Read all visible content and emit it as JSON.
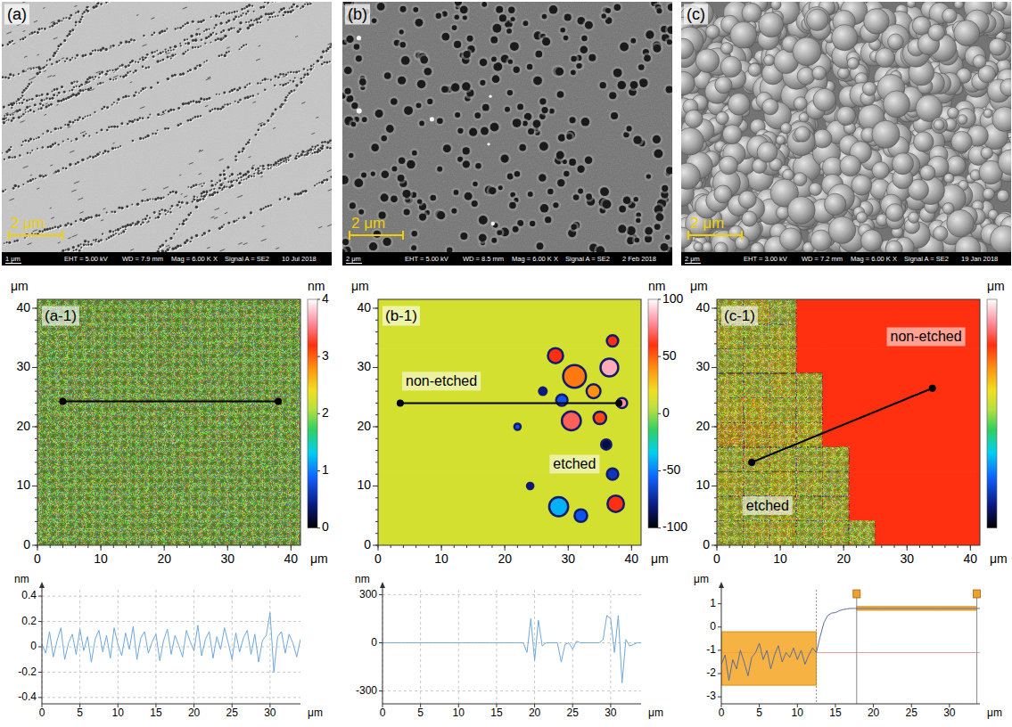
{
  "sem_images": [
    {
      "label": "(a)",
      "scale_bar": "2 μm",
      "info_bar": {
        "scale": "1 μm",
        "eht": "EHT = 5.00 kV",
        "wd": "WD = 7.9 mm",
        "mag": "Mag = 6.00 K X",
        "signal": "Signal A = SE2",
        "date": "10 Jul 2018"
      }
    },
    {
      "label": "(b)",
      "scale_bar": "2 μm",
      "info_bar": {
        "scale": "2 μm",
        "eht": "EHT = 5.00 kV",
        "wd": "WD = 8.5 mm",
        "mag": "Mag = 6.00 K X",
        "signal": "Signal A = SE2",
        "date": "2 Feb 2018"
      }
    },
    {
      "label": "(c)",
      "scale_bar": "2 μm",
      "info_bar": {
        "scale": "2 μm",
        "eht": "EHT = 3.00 kV",
        "wd": "WD = 7.2 mm",
        "mag": "Mag = 6.00 K X",
        "signal": "Signal A = SE2",
        "date": "19 Jan 2018"
      }
    }
  ],
  "chart_data": [
    {
      "type": "heatmap",
      "title": "(a-1)",
      "x_label": "μm",
      "y_label": "μm",
      "xlim": [
        0,
        41.5
      ],
      "ylim": [
        0,
        41.5
      ],
      "xticks": [
        0,
        10,
        20,
        30,
        40
      ],
      "yticks": [
        0,
        10,
        20,
        30,
        40
      ],
      "cells": [
        [
          2,
          2,
          2,
          2,
          2,
          2,
          2,
          2,
          2,
          2
        ],
        [
          2,
          2,
          2,
          2,
          2,
          2,
          2,
          2,
          2,
          2
        ],
        [
          2,
          2,
          2,
          2,
          2,
          2,
          2,
          2,
          2,
          2
        ],
        [
          2,
          2,
          2,
          2,
          2,
          2,
          2,
          2,
          2,
          2
        ],
        [
          2,
          2,
          2,
          2,
          2,
          2,
          2,
          2,
          2,
          2
        ],
        [
          2,
          2,
          2,
          2,
          2,
          2,
          2,
          2,
          2,
          2
        ],
        [
          2,
          2,
          2,
          2,
          2,
          2,
          2,
          2,
          2,
          2
        ],
        [
          2,
          2,
          2,
          2,
          2,
          2,
          2,
          2,
          2,
          2
        ],
        [
          2,
          2,
          2,
          2,
          2,
          2,
          2,
          2,
          2,
          2
        ],
        [
          2,
          2,
          2,
          2,
          2,
          2,
          2,
          2,
          2,
          2
        ]
      ],
      "colorbar_label": "nm",
      "colorbar_range": [
        0,
        4
      ],
      "colorbar_ticks": [
        0,
        1,
        2,
        3,
        4
      ],
      "profile_line": {
        "x": [
          4,
          38
        ],
        "y": [
          24.3,
          24.3
        ]
      }
    },
    {
      "type": "heatmap",
      "title": "(b-1)",
      "x_label": "μm",
      "y_label": "μm",
      "xlim": [
        0,
        41.5
      ],
      "ylim": [
        0,
        41.5
      ],
      "xticks": [
        0,
        10,
        20,
        30,
        40
      ],
      "yticks": [
        0,
        10,
        20,
        30,
        40
      ],
      "cells": [
        [
          12,
          12,
          12,
          12,
          12,
          12,
          12,
          12,
          12,
          12
        ],
        [
          12,
          12,
          12,
          12,
          12,
          12,
          12,
          12,
          12,
          12
        ],
        [
          12,
          12,
          12,
          12,
          12,
          12,
          12,
          12,
          12,
          12
        ],
        [
          12,
          12,
          12,
          12,
          12,
          12,
          12,
          12,
          12,
          12
        ],
        [
          12,
          12,
          12,
          12,
          12,
          12,
          12,
          12,
          12,
          12
        ],
        [
          12,
          12,
          12,
          12,
          12,
          12,
          12,
          12,
          12,
          12
        ],
        [
          12,
          12,
          12,
          12,
          12,
          12,
          12,
          12,
          12,
          12
        ],
        [
          12,
          12,
          12,
          12,
          12,
          12,
          12,
          12,
          12,
          12
        ],
        [
          12,
          12,
          12,
          12,
          12,
          12,
          12,
          12,
          12,
          12
        ],
        [
          12,
          12,
          12,
          12,
          12,
          12,
          12,
          12,
          12,
          12
        ]
      ],
      "spots": [
        {
          "x": 28,
          "y": 32,
          "r": 1.2,
          "value": 60
        },
        {
          "x": 31,
          "y": 28.5,
          "r": 1.8,
          "value": 45
        },
        {
          "x": 36.5,
          "y": 30,
          "r": 1.4,
          "value": 85
        },
        {
          "x": 34,
          "y": 26,
          "r": 1.1,
          "value": 40
        },
        {
          "x": 29,
          "y": 24.5,
          "r": 0.9,
          "value": -60
        },
        {
          "x": 30.5,
          "y": 21,
          "r": 1.5,
          "value": 70
        },
        {
          "x": 35,
          "y": 21.5,
          "r": 1,
          "value": 55
        },
        {
          "x": 26,
          "y": 26,
          "r": 0.6,
          "value": -80
        },
        {
          "x": 22,
          "y": 20,
          "r": 0.5,
          "value": -60
        },
        {
          "x": 37,
          "y": 34.5,
          "r": 0.9,
          "value": 60
        },
        {
          "x": 37,
          "y": 12,
          "r": 0.9,
          "value": -70
        },
        {
          "x": 28.5,
          "y": 6.5,
          "r": 1.5,
          "value": -40
        },
        {
          "x": 32,
          "y": 5,
          "r": 1,
          "value": -60
        },
        {
          "x": 37.5,
          "y": 7,
          "r": 1.3,
          "value": 60
        },
        {
          "x": 24,
          "y": 10,
          "r": 0.5,
          "value": -80
        },
        {
          "x": 36,
          "y": 17,
          "r": 0.8,
          "value": -90
        },
        {
          "x": 38.5,
          "y": 24,
          "r": 0.8,
          "value": 80
        }
      ],
      "annotations": [
        {
          "text": "non-etched",
          "x": 10,
          "y": 27.5
        },
        {
          "text": "etched",
          "x": 31,
          "y": 13.5
        }
      ],
      "colorbar_label": "nm",
      "colorbar_range": [
        -100,
        100
      ],
      "colorbar_ticks": [
        -100,
        -50,
        0,
        50,
        100
      ],
      "profile_line": {
        "x": [
          3.5,
          38
        ],
        "y": [
          24,
          24
        ]
      }
    },
    {
      "type": "heatmap",
      "title": "(c-1)",
      "x_label": "μm",
      "y_label": "μm",
      "xlim": [
        0,
        41.5
      ],
      "ylim": [
        0,
        41.5
      ],
      "xticks": [
        0,
        10,
        20,
        30,
        40
      ],
      "yticks": [
        0,
        10,
        20,
        30,
        40
      ],
      "cells": [
        [
          -1.2,
          -1.0,
          -1.4,
          0.8,
          0.8,
          0.8,
          0.8,
          0.8,
          0.8,
          0.8
        ],
        [
          -1.1,
          -1.3,
          -1.2,
          0.8,
          0.8,
          0.8,
          0.8,
          0.8,
          0.8,
          0.8
        ],
        [
          -1.4,
          -1.1,
          -1.0,
          0.8,
          0.8,
          0.8,
          0.8,
          0.8,
          0.8,
          0.8
        ],
        [
          -1.2,
          -1.3,
          -1.1,
          -1.2,
          0.8,
          0.8,
          0.8,
          0.8,
          0.8,
          0.8
        ],
        [
          -1.0,
          -0.9,
          -1.2,
          -1.1,
          0.8,
          0.8,
          0.8,
          0.8,
          0.8,
          0.8
        ],
        [
          -0.6,
          -0.7,
          -0.8,
          -0.9,
          0.8,
          0.8,
          0.8,
          0.8,
          0.8,
          0.8
        ],
        [
          -1.3,
          -1.1,
          -1.2,
          -1.4,
          -1.2,
          0.8,
          0.8,
          0.8,
          0.8,
          0.8
        ],
        [
          -1.1,
          -1.3,
          -1.0,
          -1.2,
          -1.3,
          0.8,
          0.8,
          0.8,
          0.8,
          0.8
        ],
        [
          -1.2,
          -1.4,
          -1.1,
          -1.3,
          -1.2,
          0.8,
          0.8,
          0.8,
          0.8,
          0.8
        ],
        [
          -1.3,
          -1.2,
          -1.1,
          -1.4,
          -1.2,
          -1.3,
          0.8,
          0.8,
          0.8,
          0.8
        ]
      ],
      "annotations": [
        {
          "text": "non-etched",
          "x": 33,
          "y": 35
        },
        {
          "text": "etched",
          "x": 8,
          "y": 6.5
        }
      ],
      "colorbar_label": "μm",
      "colorbar_range": [
        -6,
        2.5
      ],
      "profile_line": {
        "x": [
          5.5,
          34
        ],
        "y": [
          14,
          26.5
        ]
      }
    },
    {
      "type": "line",
      "x_label": "μm",
      "y_label": "nm",
      "color": "#6fa8dc",
      "grid": true,
      "xlim": [
        0,
        34
      ],
      "ylim": [
        -0.45,
        0.45
      ],
      "xticks": [
        0,
        5,
        10,
        15,
        20,
        25,
        30
      ],
      "yticks": [
        -0.4,
        -0.2,
        0,
        0.2,
        0.4
      ],
      "x": [
        0,
        0.5,
        1,
        1.5,
        2,
        2.5,
        3,
        3.5,
        4,
        4.5,
        5,
        5.5,
        6,
        6.5,
        7,
        7.5,
        8,
        8.5,
        9,
        9.5,
        10,
        10.5,
        11,
        11.5,
        12,
        12.5,
        13,
        13.5,
        14,
        14.5,
        15,
        15.5,
        16,
        16.5,
        17,
        17.5,
        18,
        18.5,
        19,
        19.5,
        20,
        20.5,
        21,
        21.5,
        22,
        22.5,
        23,
        23.5,
        24,
        24.5,
        25,
        25.5,
        26,
        26.5,
        27,
        27.5,
        28,
        28.5,
        29,
        29.5,
        30,
        30.5,
        31,
        31.5,
        32,
        32.5,
        33,
        33.5,
        34
      ],
      "values": [
        0.02,
        -0.05,
        0.12,
        -0.08,
        0.05,
        0.15,
        -0.1,
        0.03,
        0.1,
        -0.06,
        0.14,
        -0.03,
        0.08,
        -0.12,
        0.06,
        0.13,
        -0.04,
        0.09,
        -0.09,
        0.15,
        0.02,
        -0.07,
        0.11,
        -0.02,
        0.16,
        -0.1,
        0.07,
        0.12,
        -0.05,
        0.04,
        0.1,
        -0.11,
        0.05,
        0.14,
        -0.06,
        0.09,
        0.01,
        -0.08,
        0.13,
        0.04,
        -0.03,
        0.17,
        -0.07,
        0.06,
        0.12,
        -0.09,
        0.08,
        -0.02,
        0.15,
        0.03,
        -0.1,
        0.11,
        -0.04,
        0.07,
        0.13,
        -0.06,
        0.1,
        -0.12,
        0.05,
        0.09,
        0.27,
        -0.2,
        0.08,
        0.12,
        -0.05,
        0.1,
        0.03,
        -0.08,
        0.06
      ]
    },
    {
      "type": "line",
      "x_label": "μm",
      "y_label": "nm",
      "color": "#6fa8dc",
      "grid": true,
      "xlim": [
        0,
        34
      ],
      "ylim": [
        -380,
        330
      ],
      "xticks": [
        0,
        5,
        10,
        15,
        20,
        25,
        30
      ],
      "yticks": [
        -300,
        0,
        300
      ],
      "x": [
        0,
        0.5,
        1,
        1.5,
        2,
        2.5,
        3,
        3.5,
        4,
        4.5,
        5,
        5.5,
        6,
        6.5,
        7,
        7.5,
        8,
        8.5,
        9,
        9.5,
        10,
        10.5,
        11,
        11.5,
        12,
        12.5,
        13,
        13.5,
        14,
        14.5,
        15,
        15.5,
        16,
        16.5,
        17,
        17.5,
        18,
        18.5,
        19,
        19.5,
        20,
        20.5,
        21,
        21.5,
        22,
        22.5,
        23,
        23.5,
        24,
        24.5,
        25,
        25.5,
        26,
        26.5,
        27,
        27.5,
        28,
        28.5,
        29,
        29.5,
        30,
        30.5,
        31,
        31.5,
        32,
        32.5,
        33,
        33.5,
        34
      ],
      "values": [
        0,
        0,
        0,
        0,
        0,
        0,
        0,
        0,
        0,
        0,
        0,
        0,
        0,
        0,
        0,
        0,
        0,
        0,
        0,
        0,
        0,
        0,
        0,
        0,
        0,
        0,
        0,
        0,
        0,
        0,
        0,
        0,
        0,
        0,
        0,
        0,
        0,
        0,
        -60,
        150,
        -110,
        140,
        -20,
        0,
        0,
        0,
        0,
        -120,
        -10,
        0,
        -40,
        10,
        0,
        0,
        0,
        0,
        0,
        0,
        20,
        170,
        150,
        -60,
        170,
        -250,
        20,
        -20,
        -10,
        0,
        0
      ]
    },
    {
      "type": "line",
      "x_label": "μm",
      "y_label": "μm",
      "color": "#5b6b9a",
      "grid": false,
      "xlim": [
        0,
        34
      ],
      "ylim": [
        -3.3,
        1.6
      ],
      "xticks": [
        0,
        5,
        10,
        15,
        20,
        25,
        30
      ],
      "yticks": [
        -3,
        -2,
        -1,
        0,
        1
      ],
      "x": [
        0,
        0.5,
        1,
        1.5,
        2,
        2.5,
        3,
        3.5,
        4,
        4.5,
        5,
        5.5,
        6,
        6.5,
        7,
        7.5,
        8,
        8.5,
        9,
        9.5,
        10,
        10.5,
        11,
        11.5,
        12,
        12.5,
        13,
        13.5,
        14,
        14.5,
        15,
        15.5,
        16,
        16.5,
        17,
        17.5,
        18,
        18.5,
        19,
        19.5,
        20,
        20.5,
        21,
        21.5,
        22,
        22.5,
        23,
        23.5,
        24,
        24.5,
        25,
        25.5,
        26,
        26.5,
        27,
        27.5,
        28,
        28.5,
        29,
        29.5,
        30,
        30.5,
        31,
        31.5,
        32,
        32.5,
        33,
        33.5,
        34
      ],
      "values": [
        -1.6,
        -1.2,
        -2.3,
        -1.4,
        -1.8,
        -1.0,
        -1.5,
        -2.1,
        -1.3,
        -1.1,
        -0.7,
        -1.4,
        -1.0,
        -1.8,
        -1.2,
        -0.8,
        -1.5,
        -1.1,
        -1.3,
        -0.9,
        -1.4,
        -1.0,
        -1.6,
        -1.2,
        -0.9,
        -1.1,
        -0.4,
        0.2,
        0.5,
        0.6,
        0.62,
        0.7,
        0.75,
        0.78,
        0.8,
        0.8,
        0.8,
        0.8,
        0.8,
        0.8,
        0.8,
        0.8,
        0.8,
        0.8,
        0.8,
        0.8,
        0.8,
        0.8,
        0.8,
        0.8,
        0.8,
        0.8,
        0.8,
        0.8,
        0.8,
        0.8,
        0.8,
        0.8,
        0.8,
        0.8,
        0.8,
        0.8,
        0.8,
        0.8,
        0.8,
        0.8,
        0.8,
        0.8,
        0.8
      ],
      "regions": [
        {
          "x": [
            0,
            12.5
          ],
          "y": [
            -2.5,
            -0.2
          ]
        },
        {
          "x": [
            17.8,
            33.6
          ],
          "y": [
            0.72,
            0.88
          ]
        }
      ],
      "cursors": [
        12.5,
        17.8,
        33.6
      ],
      "reference_line": -1.1
    }
  ]
}
